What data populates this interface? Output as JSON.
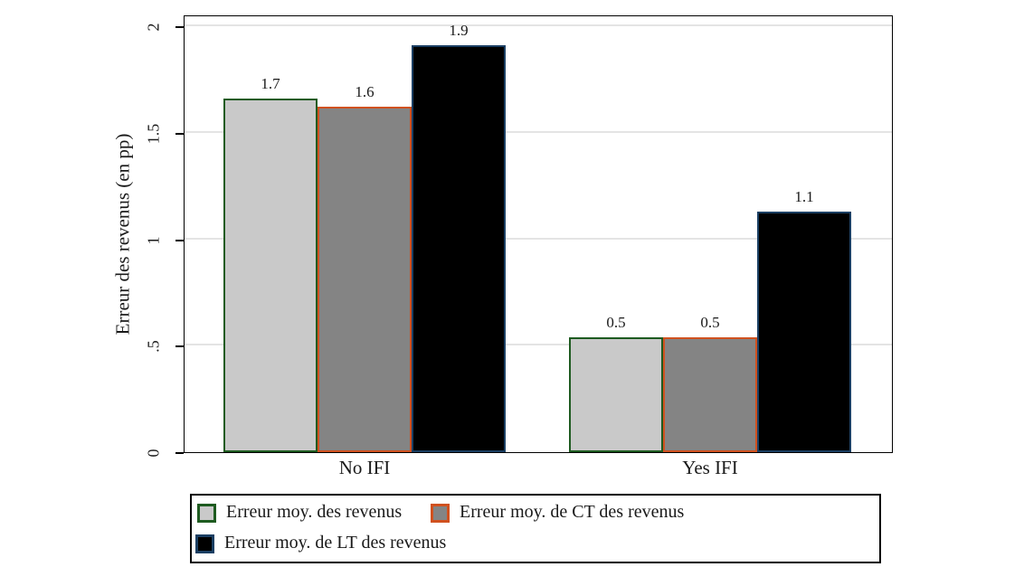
{
  "chart_data": {
    "type": "bar",
    "title": "",
    "ylabel": "Erreur des revenus (en pp)",
    "xlabel": "",
    "categories": [
      "No IFI",
      "Yes IFI"
    ],
    "series": [
      {
        "name": "Erreur moy. des revenus",
        "fill": "#c9c9c9",
        "border": "#1e5b20",
        "values": [
          1.66,
          0.54
        ],
        "bar_labels": [
          "1.7",
          "0.5"
        ]
      },
      {
        "name": "Erreur moy. de CT des revenus",
        "fill": "#848484",
        "border": "#d0511f",
        "values": [
          1.62,
          0.54
        ],
        "bar_labels": [
          "1.6",
          "0.5"
        ]
      },
      {
        "name": "Erreur moy. de LT des revenus",
        "fill": "#000000",
        "border": "#1b3f63",
        "values": [
          1.91,
          1.13
        ],
        "bar_labels": [
          "1.9",
          "1.1"
        ]
      }
    ],
    "y_ticks": [
      {
        "value": 0,
        "label": "0"
      },
      {
        "value": 0.5,
        "label": ".5"
      },
      {
        "value": 1,
        "label": "1"
      },
      {
        "value": 1.5,
        "label": "1.5"
      },
      {
        "value": 2,
        "label": "2"
      }
    ],
    "ylim": [
      0,
      2.06
    ],
    "grid": true,
    "legend_position": "bottom",
    "colors": {
      "gridline": "#e4e4e4",
      "frame": "#000000",
      "text": "#1a1a1a"
    }
  }
}
